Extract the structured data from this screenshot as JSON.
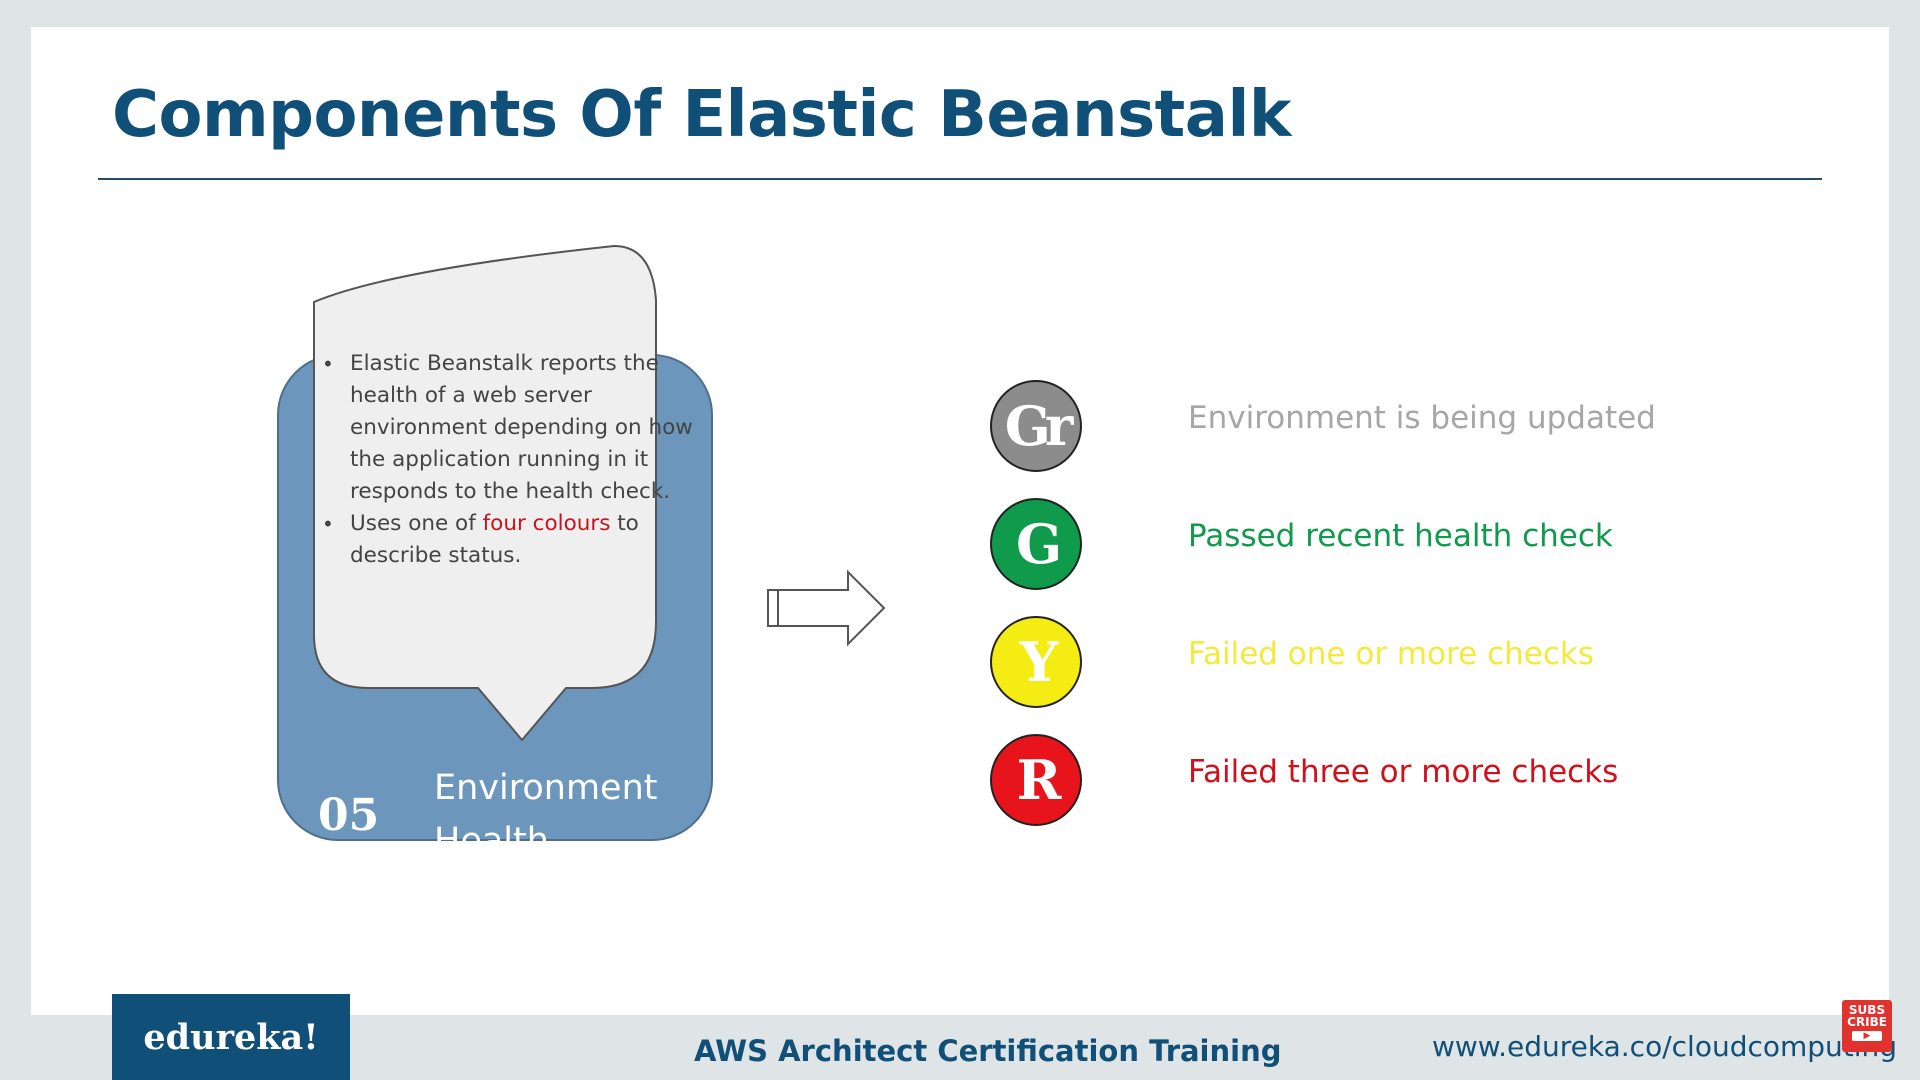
{
  "slide": {
    "title": "Components Of Elastic Beanstalk"
  },
  "card": {
    "number": "05",
    "label": "Environment Health",
    "bullet1": "Elastic Beanstalk reports the health of a web server environment depending on how the application running in it responds to the health check.",
    "bullet2_pre": "Uses one of ",
    "bullet2_highlight": "four colours",
    "bullet2_post": " to describe status.",
    "card_color": "#6d96bd",
    "highlight_color": "#c8141e"
  },
  "statuses": [
    {
      "letter": "Gr",
      "text": "Environment is  being updated",
      "circle_color": "#8c8c8c",
      "text_color": "#a6a6a6"
    },
    {
      "letter": "G",
      "text": "Passed recent health check",
      "circle_color": "#0f9a4c",
      "text_color": "#0f9a4c"
    },
    {
      "letter": "Y",
      "text": "Failed one or more checks",
      "circle_color": "#f5ec13",
      "text_color": "#f3ea3c"
    },
    {
      "letter": "R",
      "text": "Failed three or more checks",
      "circle_color": "#e8141c",
      "text_color": "#d0101a"
    }
  ],
  "footer": {
    "logo": "edureka!",
    "course": "AWS Architect Certification Training",
    "url": "www.edureka.co/cloudcomputing",
    "subscribe_line1": "SUBS",
    "subscribe_line2": "CRIBE"
  },
  "icons": {
    "arrow": "right-arrow-icon",
    "subscribe": "subscribe-badge-icon"
  }
}
